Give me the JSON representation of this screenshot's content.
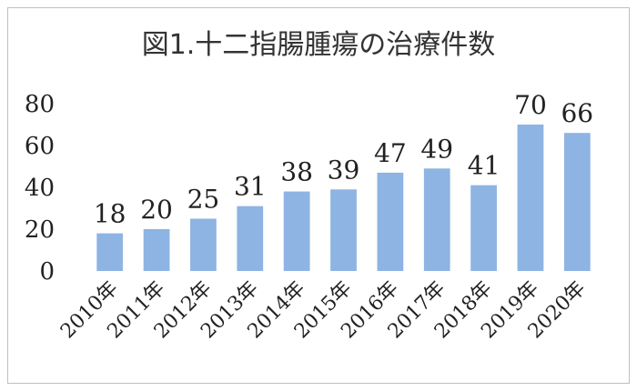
{
  "chart_data": {
    "type": "bar",
    "title": "図1.十二指腸腫瘍の治療件数",
    "categories": [
      "2010年",
      "2011年",
      "2012年",
      "2013年",
      "2014年",
      "2015年",
      "2016年",
      "2017年",
      "2018年",
      "2019年",
      "2020年"
    ],
    "values": [
      18,
      20,
      25,
      31,
      38,
      39,
      47,
      49,
      41,
      70,
      66
    ],
    "yticks": [
      "0",
      "20",
      "40",
      "60",
      "80"
    ],
    "ylim": [
      0,
      80
    ],
    "grid": false,
    "legend": "none",
    "bar_color": "#8db4e2"
  }
}
